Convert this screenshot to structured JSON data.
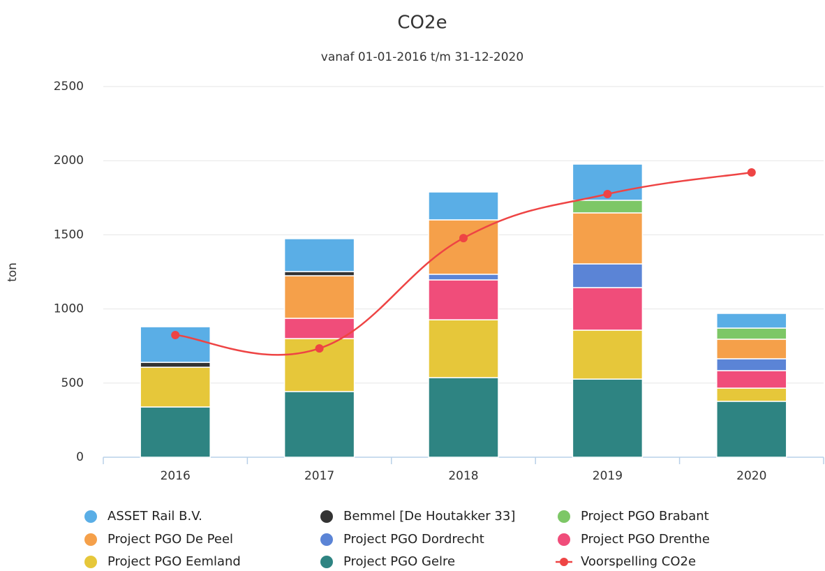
{
  "chart_data": {
    "type": "bar",
    "stacked": true,
    "title": "CO2e",
    "subtitle": "vanaf 01-01-2016 t/m 31-12-2020",
    "y_label": "ton",
    "categories": [
      "2016",
      "2017",
      "2018",
      "2019",
      "2020"
    ],
    "ylim": [
      0,
      2500
    ],
    "yticks": [
      0,
      500,
      1000,
      1500,
      2000,
      2500
    ],
    "grid": true,
    "legend": "bottom",
    "series": [
      {
        "name": "ASSET Rail B.V.",
        "color": "#5aaee6",
        "values": [
          240,
          222,
          188,
          244,
          99
        ]
      },
      {
        "name": "Bemmel [De Houtakker 33]",
        "color": "#333333",
        "values": [
          33,
          28,
          null,
          null,
          null
        ]
      },
      {
        "name": "Project PGO Brabant",
        "color": "#7dc766",
        "values": [
          null,
          null,
          null,
          85,
          75
        ]
      },
      {
        "name": "Project PGO De Peel",
        "color": "#f5a04a",
        "values": [
          null,
          287,
          367,
          344,
          132
        ]
      },
      {
        "name": "Project PGO Dordrecht",
        "color": "#5b84d6",
        "values": [
          null,
          null,
          38,
          160,
          80
        ]
      },
      {
        "name": "Project PGO Drenthe",
        "color": "#f04d7a",
        "values": [
          null,
          137,
          269,
          287,
          118
        ]
      },
      {
        "name": "Project PGO Eemland",
        "color": "#e6c73a",
        "values": [
          268,
          357,
          390,
          330,
          89
        ]
      },
      {
        "name": "Project PGO Gelre",
        "color": "#2e8482",
        "values": [
          339,
          443,
          537,
          527,
          377
        ]
      },
      {
        "name": "Voorspelling CO2e",
        "color": "#ee4444",
        "type": "line",
        "values": [
          824,
          734,
          1478,
          1775,
          1921
        ]
      }
    ]
  }
}
